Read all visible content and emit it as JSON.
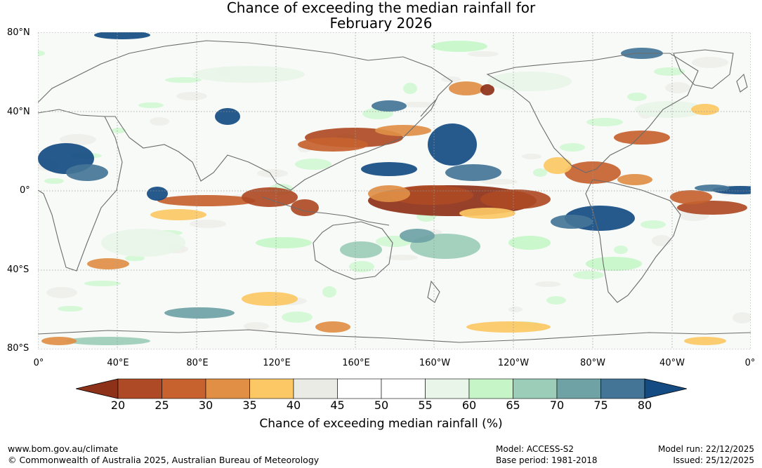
{
  "title": {
    "line1": "Chance of exceeding the median rainfall for",
    "line2": "February 2026"
  },
  "map": {
    "lat_labels": [
      "80°N",
      "40°N",
      "0°",
      "40°S",
      "80°S"
    ],
    "lon_labels": [
      "0°",
      "40°E",
      "80°E",
      "120°E",
      "160°E",
      "160°W",
      "120°W",
      "80°W",
      "40°W",
      "0°"
    ]
  },
  "legend": {
    "title": "Chance of exceeding median rainfall (%)",
    "ticks": [
      "20",
      "25",
      "30",
      "35",
      "40",
      "45",
      "50",
      "55",
      "60",
      "65",
      "70",
      "75",
      "80"
    ],
    "colors": [
      "#8e3119",
      "#ae4a25",
      "#c7622f",
      "#e08f45",
      "#fcc865",
      "#ebebe6",
      "#ffffff",
      "#ffffff",
      "#e9f5e9",
      "#c6f6c7",
      "#9bcdb8",
      "#6ea2a5",
      "#447597",
      "#144b82"
    ]
  },
  "footer": {
    "url": "www.bom.gov.au/climate",
    "copyright": "© Commonwealth of Australia 2025, Australian Bureau of Meteorology",
    "model": "Model: ACCESS-S2",
    "base_period": "Base period: 1981-2018",
    "model_run": "Model run: 22/12/2025",
    "issued": "Issued: 25/12/2025"
  }
}
